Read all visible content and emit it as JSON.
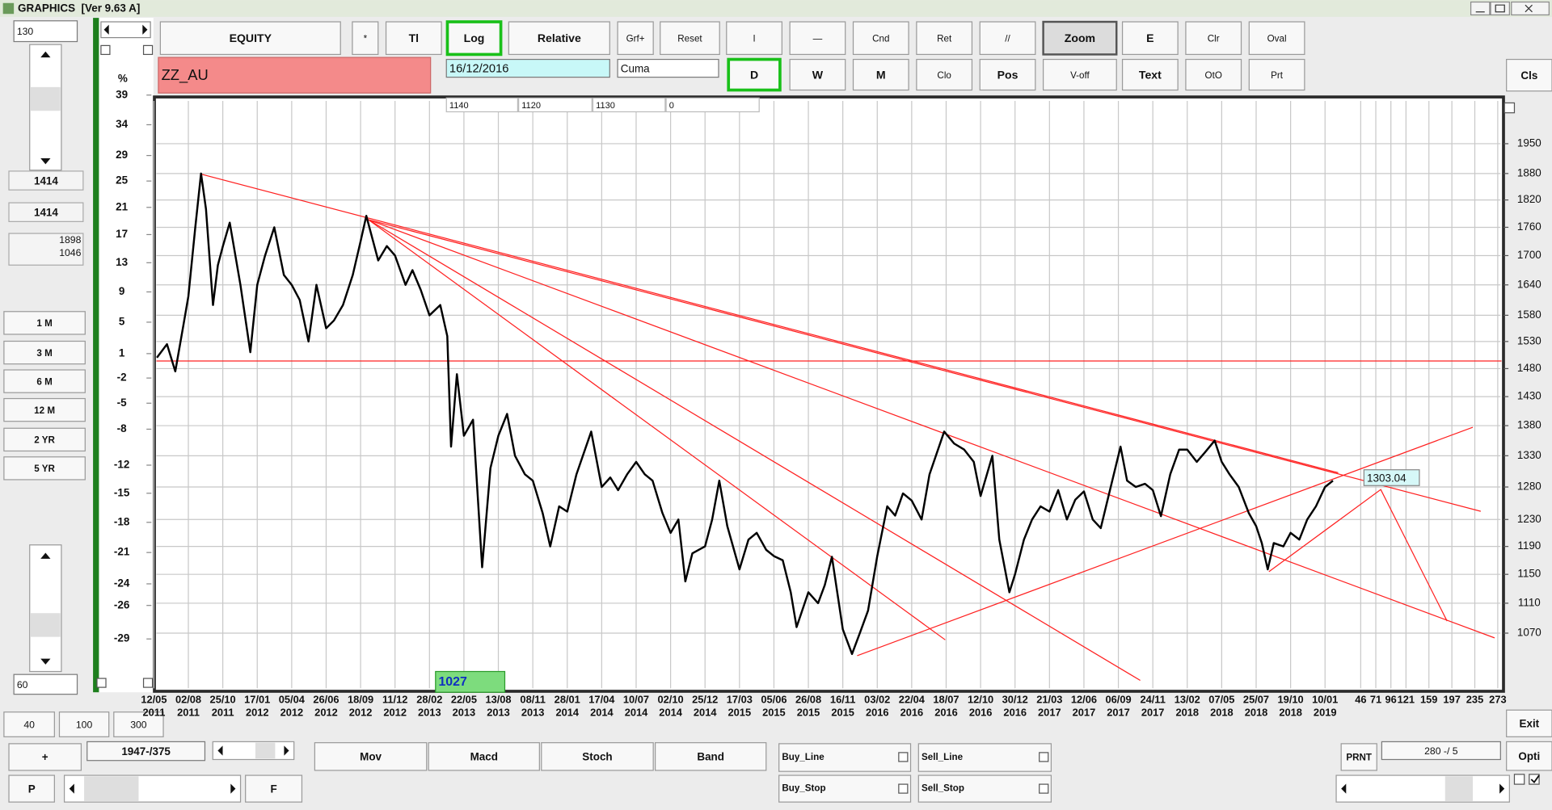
{
  "window": {
    "title": "GRAPHICS  [Ver 9.63 A]"
  },
  "left_panel": {
    "bars_field": "130",
    "value_a": "1414",
    "value_b": "1414",
    "range_high": "1898",
    "range_low": "1046",
    "periods": [
      "1 M",
      "3 M",
      "6 M",
      "12 M",
      "2 YR",
      "5 YR"
    ],
    "bottom_field": "60"
  },
  "toolbar": {
    "row1": [
      "EQUITY",
      "*",
      "Tl",
      "Log",
      "Relative",
      "Grf+",
      "Reset",
      "l",
      "—",
      "Cnd",
      "Ret",
      "//",
      "Zoom",
      "E",
      "Clr",
      "Oval"
    ],
    "row2": [
      "D",
      "W",
      "M",
      "Clo",
      "Pos",
      "V-off",
      "Text",
      "OtO",
      "Prt"
    ],
    "close": "Cls",
    "symbol": "ZZ_AU",
    "date": "16/12/2016",
    "mode": "Cuma",
    "fields": [
      "1140",
      "1120",
      "1130",
      "0"
    ]
  },
  "chart_data": {
    "type": "line",
    "y2_label": "%",
    "price_label": "1303.04",
    "bar_label": "1027",
    "series": [
      {
        "color": "#000000",
        "x": [
          "19/05/2011",
          "12/06/2011",
          "02/07/2011",
          "21/07/2011",
          "02/08/2011",
          "19/08/2011",
          "02/09/2011",
          "14/09/2011",
          "01/10/2011",
          "13/10/2011",
          "25/10/2011",
          "11/11/2011",
          "07/12/2011",
          "31/12/2011",
          "17/01/2012",
          "04/02/2012",
          "25/02/2012",
          "18/03/2012",
          "05/04/2012",
          "24/04/2012",
          "15/05/2012",
          "03/06/2012",
          "26/06/2012",
          "15/07/2012",
          "06/08/2012",
          "30/08/2012",
          "18/09/2012",
          "02/10/2012",
          "31/10/2012",
          "21/11/2012",
          "11/12/2012",
          "04/01/2013",
          "20/01/2013",
          "08/02/2013",
          "28/02/2013",
          "26/03/2013",
          "12/04/2013",
          "21/04/2013",
          "05/05/2013",
          "22/05/2013",
          "13/06/2013",
          "05/07/2013",
          "25/07/2013",
          "13/08/2013",
          "04/09/2013",
          "24/09/2013",
          "19/10/2013",
          "08/11/2013",
          "01/12/2013",
          "19/12/2013",
          "09/01/2014",
          "28/01/2014",
          "18/02/2014",
          "24/03/2014",
          "17/04/2014",
          "08/05/2014",
          "27/05/2014",
          "18/06/2014",
          "10/07/2014",
          "31/07/2014",
          "19/08/2014",
          "12/09/2014",
          "02/10/2014",
          "21/10/2014",
          "07/11/2014",
          "24/11/2014",
          "25/12/2014",
          "11/01/2015",
          "28/01/2015",
          "16/02/2015",
          "17/03/2015",
          "07/04/2015",
          "26/04/2015",
          "18/05/2015",
          "05/06/2015",
          "26/06/2015",
          "15/07/2015",
          "29/07/2015",
          "26/08/2015",
          "18/09/2015",
          "04/10/2015",
          "21/10/2015",
          "16/11/2015",
          "07/12/2015",
          "25/12/2015",
          "13/01/2016",
          "03/02/2016",
          "26/02/2016",
          "15/03/2016",
          "02/04/2016",
          "22/04/2016",
          "17/05/2016",
          "06/06/2016",
          "13/07/2016",
          "07/08/2016",
          "01/09/2016",
          "25/09/2016",
          "12/10/2016",
          "08/11/2016",
          "24/11/2016",
          "17/12/2016",
          "30/12/2016",
          "20/01/2017",
          "08/02/2017",
          "28/02/2017",
          "21/03/2017",
          "11/04/2017",
          "02/05/2017",
          "22/05/2017",
          "12/06/2017",
          "04/07/2017",
          "24/07/2017",
          "14/08/2017",
          "11/09/2017",
          "26/09/2017",
          "16/10/2017",
          "06/11/2017",
          "24/11/2017",
          "13/12/2017",
          "04/01/2018",
          "25/01/2018",
          "13/02/2018",
          "08/03/2018",
          "27/03/2018",
          "20/04/2018",
          "07/05/2018",
          "25/05/2018",
          "15/06/2018",
          "08/07/2018",
          "25/07/2018",
          "08/08/2018",
          "23/08/2018",
          "07/09/2018",
          "01/10/2018",
          "19/10/2018",
          "09/11/2018",
          "28/11/2018",
          "19/12/2018",
          "10/01/2019",
          "29/01/2019"
        ],
        "values": [
          1500,
          1525,
          1475,
          1560,
          1617,
          1760,
          1880,
          1800,
          1600,
          1680,
          1719,
          1770,
          1640,
          1510,
          1640,
          1700,
          1760,
          1660,
          1640,
          1610,
          1530,
          1640,
          1555,
          1570,
          1600,
          1660,
          1730,
          1785,
          1690,
          1720,
          1700,
          1640,
          1670,
          1630,
          1580,
          1600,
          1540,
          1345,
          1470,
          1363,
          1390,
          1160,
          1310,
          1363,
          1400,
          1330,
          1300,
          1290,
          1240,
          1190,
          1250,
          1242,
          1300,
          1370,
          1280,
          1295,
          1275,
          1300,
          1320,
          1300,
          1290,
          1240,
          1210,
          1230,
          1140,
          1180,
          1190,
          1230,
          1290,
          1220,
          1157,
          1200,
          1210,
          1185,
          1176,
          1170,
          1125,
          1078,
          1125,
          1110,
          1135,
          1175,
          1075,
          1043,
          1070,
          1100,
          1176,
          1250,
          1236,
          1270,
          1259,
          1230,
          1300,
          1370,
          1350,
          1340,
          1320,
          1266,
          1330,
          1200,
          1125,
          1150,
          1200,
          1230,
          1250,
          1242,
          1275,
          1230,
          1260,
          1273,
          1230,
          1217,
          1270,
          1345,
          1290,
          1280,
          1285,
          1275,
          1235,
          1300,
          1340,
          1340,
          1320,
          1335,
          1355,
          1320,
          1300,
          1280,
          1240,
          1220,
          1195,
          1157,
          1195,
          1190,
          1210,
          1200,
          1230,
          1250,
          1280,
          1290
        ]
      }
    ],
    "ylim": [
      1000,
      2055
    ],
    "log_scale": true,
    "yticks": [
      1070,
      1110,
      1150,
      1190,
      1230,
      1280,
      1330,
      1380,
      1430,
      1480,
      1530,
      1580,
      1640,
      1700,
      1760,
      1820,
      1880,
      1950
    ],
    "y2lim": [
      -33.2,
      38
    ],
    "y2_log_scale": true,
    "y2ticks": [
      -29,
      -26,
      -24,
      -21,
      -18,
      -15,
      -12,
      -8,
      -5,
      -2,
      1,
      5,
      9,
      13,
      17,
      21,
      25,
      29,
      34,
      39
    ],
    "xticks": [
      {
        "value": "12/05/2011",
        "label": [
          "12/05",
          "2011"
        ]
      },
      {
        "value": "02/08/2011",
        "label": [
          "02/08",
          "2011"
        ]
      },
      {
        "value": "25/10/2011",
        "label": [
          "25/10",
          "2011"
        ]
      },
      {
        "value": "17/01/2012",
        "label": [
          "17/01",
          "2012"
        ]
      },
      {
        "value": "05/04/2012",
        "label": [
          "05/04",
          "2012"
        ]
      },
      {
        "value": "26/06/2012",
        "label": [
          "26/06",
          "2012"
        ]
      },
      {
        "value": "18/09/2012",
        "label": [
          "18/09",
          "2012"
        ]
      },
      {
        "value": "11/12/2012",
        "label": [
          "11/12",
          "2012"
        ]
      },
      {
        "value": "28/02/2013",
        "label": [
          "28/02",
          "2013"
        ]
      },
      {
        "value": "22/05/2013",
        "label": [
          "22/05",
          "2013"
        ]
      },
      {
        "value": "13/08/2013",
        "label": [
          "13/08",
          "2013"
        ]
      },
      {
        "value": "08/11/2013",
        "label": [
          "08/11",
          "2013"
        ]
      },
      {
        "value": "28/01/2014",
        "label": [
          "28/01",
          "2014"
        ]
      },
      {
        "value": "17/04/2014",
        "label": [
          "17/04",
          "2014"
        ]
      },
      {
        "value": "10/07/2014",
        "label": [
          "10/07",
          "2014"
        ]
      },
      {
        "value": "02/10/2014",
        "label": [
          "02/10",
          "2014"
        ]
      },
      {
        "value": "25/12/2014",
        "label": [
          "25/12",
          "2014"
        ]
      },
      {
        "value": "17/03/2015",
        "label": [
          "17/03",
          "2015"
        ]
      },
      {
        "value": "05/06/2015",
        "label": [
          "05/06",
          "2015"
        ]
      },
      {
        "value": "26/08/2015",
        "label": [
          "26/08",
          "2015"
        ]
      },
      {
        "value": "16/11/2015",
        "label": [
          "16/11",
          "2015"
        ]
      },
      {
        "value": "03/02/2016",
        "label": [
          "03/02",
          "2016"
        ]
      },
      {
        "value": "22/04/2016",
        "label": [
          "22/04",
          "2016"
        ]
      },
      {
        "value": "18/07/2016",
        "label": [
          "18/07",
          "2016"
        ]
      },
      {
        "value": "12/10/2016",
        "label": [
          "12/10",
          "2016"
        ]
      },
      {
        "value": "30/12/2016",
        "label": [
          "30/12",
          "2016"
        ]
      },
      {
        "value": "21/03/2017",
        "label": [
          "21/03",
          "2017"
        ]
      },
      {
        "value": "12/06/2017",
        "label": [
          "12/06",
          "2017"
        ]
      },
      {
        "value": "06/09/2017",
        "label": [
          "06/09",
          "2017"
        ]
      },
      {
        "value": "24/11/2017",
        "label": [
          "24/11",
          "2017"
        ]
      },
      {
        "value": "13/02/2018",
        "label": [
          "13/02",
          "2018"
        ]
      },
      {
        "value": "07/05/2018",
        "label": [
          "07/05",
          "2018"
        ]
      },
      {
        "value": "25/07/2018",
        "label": [
          "25/07",
          "2018"
        ]
      },
      {
        "value": "19/10/2018",
        "label": [
          "19/10",
          "2018"
        ]
      },
      {
        "value": "10/01/2019",
        "label": [
          "10/01",
          "2019"
        ]
      }
    ],
    "future_ticks": [
      46,
      71,
      96,
      121,
      159,
      197,
      235,
      273
    ],
    "grid": true
  },
  "bottom": {
    "zoom_buttons": [
      "40",
      "100",
      "300"
    ],
    "plus": "+",
    "position": "1947-/375",
    "p": "P",
    "f": "F",
    "indicators": [
      "Mov",
      "Macd",
      "Stoch",
      "Band"
    ],
    "orders": [
      "Buy_Line",
      "Sell_Line",
      "Buy_Stop",
      "Sell_Stop"
    ],
    "prnt": "PRNT",
    "counter": "280 -/ 5",
    "exit": "Exit",
    "opti": "Opti"
  }
}
